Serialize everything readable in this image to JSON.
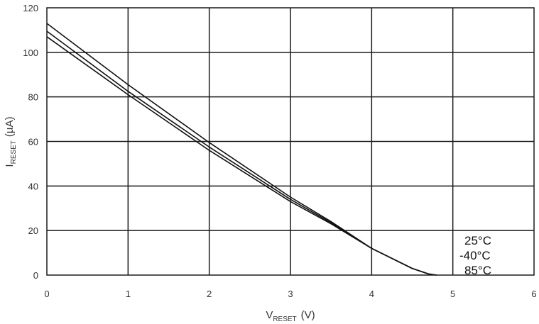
{
  "chart_data": {
    "type": "line",
    "x_axis": {
      "label_main": "V",
      "label_sub": "RESET",
      "label_unit": "(V)",
      "range": [
        0,
        6
      ],
      "ticks": [
        "0",
        "1",
        "2",
        "3",
        "4",
        "5",
        "6"
      ]
    },
    "y_axis": {
      "label_main": "I",
      "label_sub": "RESET",
      "label_unit": "(µA)",
      "range": [
        0,
        120
      ],
      "ticks": [
        "0",
        "20",
        "40",
        "60",
        "80",
        "100",
        "120"
      ]
    },
    "grid": true,
    "legend_position": "bottom-right",
    "series": [
      {
        "name": "25°C",
        "color": "#111111",
        "x": [
          0,
          1,
          2,
          3,
          3.5,
          4,
          4.5,
          4.7,
          4.8
        ],
        "y": [
          113,
          85.5,
          59.5,
          35,
          24,
          12,
          3,
          0.5,
          0
        ]
      },
      {
        "name": "-40°C",
        "color": "#111111",
        "x": [
          0,
          1,
          2,
          3,
          3.5,
          4,
          4.5,
          4.7,
          4.8
        ],
        "y": [
          109.5,
          82.5,
          57.5,
          34,
          23.5,
          12,
          3,
          0.5,
          0
        ]
      },
      {
        "name": "85°C",
        "color": "#111111",
        "x": [
          0,
          1,
          2,
          3,
          3.5,
          4,
          4.5,
          4.7,
          4.8
        ],
        "y": [
          107,
          81,
          56,
          33,
          23,
          12,
          3,
          0.5,
          0
        ]
      }
    ]
  }
}
